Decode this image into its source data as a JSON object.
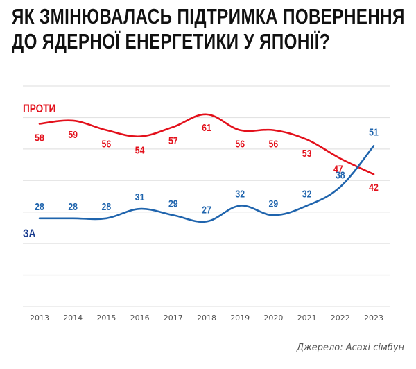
{
  "title_lines": [
    "ЯК ЗМІНЮВАЛАСЬ ПІДТРИМКА ПОВЕРНЕННЯ",
    "ДО ЯДЕРНОЇ ЕНЕРГЕТИКИ У ЯПОНІЇ?"
  ],
  "source": "Джерело: Асахі сімбун",
  "colors": {
    "against": "#e3101b",
    "for": "#1f64ad",
    "for_label": "#1b3d8f",
    "grid": "#e3e3e3",
    "axis_text": "#555555"
  },
  "chart_data": {
    "type": "line",
    "title": "Як змінювалась підтримка повернення до ядерної енергетики у Японії?",
    "xlabel": "",
    "ylabel": "",
    "categories": [
      "2013",
      "2014",
      "2015",
      "2016",
      "2017",
      "2018",
      "2019",
      "2020",
      "2021",
      "2022",
      "2023"
    ],
    "ylim": [
      0,
      70
    ],
    "grid": true,
    "gridline_values": [
      0,
      10,
      20,
      30,
      40,
      50,
      60,
      70
    ],
    "series": [
      {
        "name": "ПРОТИ",
        "key": "against",
        "values": [
          58,
          59,
          56,
          54,
          57,
          61,
          56,
          56,
          53,
          47,
          42
        ]
      },
      {
        "name": "ЗА",
        "key": "for",
        "values": [
          28,
          28,
          28,
          31,
          29,
          27,
          32,
          29,
          32,
          38,
          51
        ]
      }
    ],
    "legend": "inline-left"
  }
}
